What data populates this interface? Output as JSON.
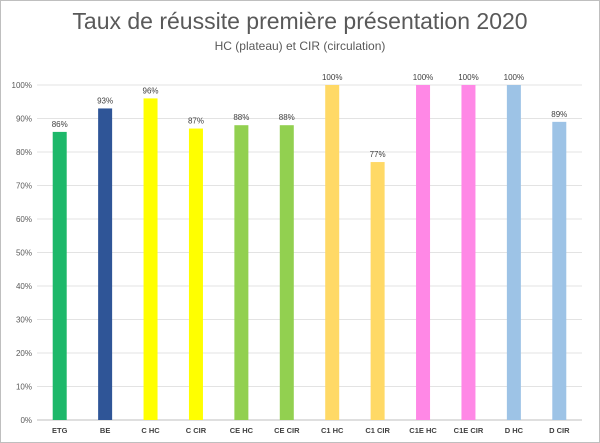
{
  "chart_data": {
    "type": "bar",
    "title": "Taux de réussite première présentation 2020",
    "subtitle": "HC (plateau) et CIR (circulation)",
    "xlabel": "",
    "ylabel": "",
    "ylim": [
      0,
      100
    ],
    "yticks": [
      "0%",
      "10%",
      "20%",
      "30%",
      "40%",
      "50%",
      "60%",
      "70%",
      "80%",
      "90%",
      "100%"
    ],
    "grid": true,
    "legend": "none",
    "categories": [
      "ETG",
      "BE",
      "C HC",
      "C CIR",
      "CE HC",
      "CE CIR",
      "C1 HC",
      "C1 CIR",
      "C1E HC",
      "C1E CIR",
      "D HC",
      "D CIR"
    ],
    "values": [
      86,
      93,
      96,
      87,
      88,
      88,
      100,
      77,
      100,
      100,
      100,
      89
    ],
    "data_labels": [
      "86%",
      "93%",
      "96%",
      "87%",
      "88%",
      "88%",
      "100%",
      "77%",
      "100%",
      "100%",
      "100%",
      "89%"
    ],
    "colors": [
      "#1db86a",
      "#2f5597",
      "#ffff00",
      "#ffff00",
      "#92d050",
      "#92d050",
      "#ffd966",
      "#ffd966",
      "#ff88e6",
      "#ff88e6",
      "#9dc3e6",
      "#9dc3e6"
    ]
  }
}
